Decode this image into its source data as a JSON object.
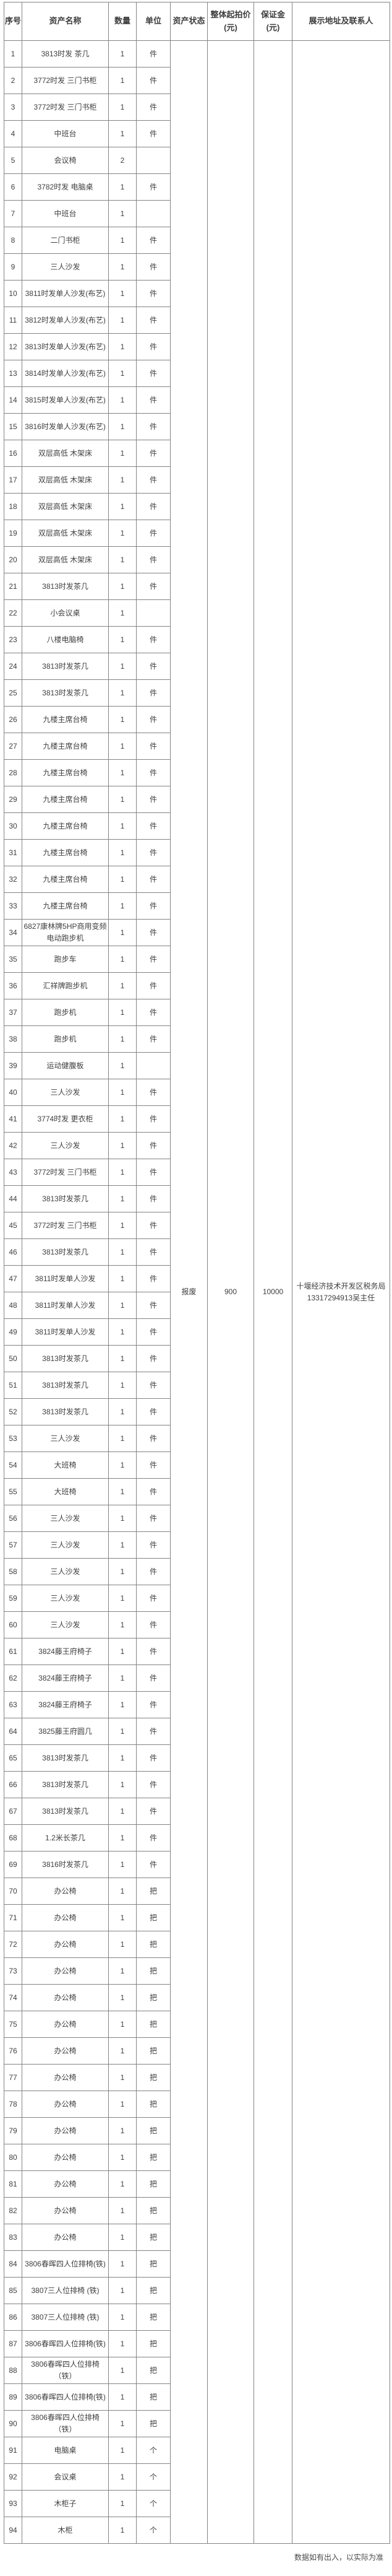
{
  "table": {
    "columns": [
      "序号",
      "资产名称",
      "数量",
      "单位",
      "资产状态",
      "整体起拍价\n(元)",
      "保证金\n(元)",
      "展示地址及联系人"
    ],
    "merged": {
      "asset_status": "报废",
      "starting_price": "900",
      "deposit": "10000",
      "contact": "十堰经济技术开发区税务局\n13317294913吴主任"
    },
    "rows": [
      {
        "no": "1",
        "name": "3813时发 茶几",
        "qty": "1",
        "unit": "件"
      },
      {
        "no": "2",
        "name": "3772时发 三门书柜",
        "qty": "1",
        "unit": "件"
      },
      {
        "no": "3",
        "name": "3772时发 三门书柜",
        "qty": "1",
        "unit": "件"
      },
      {
        "no": "4",
        "name": "中班台",
        "qty": "1",
        "unit": "件"
      },
      {
        "no": "5",
        "name": "会议椅",
        "qty": "2",
        "unit": ""
      },
      {
        "no": "6",
        "name": "3782时发 电脑桌",
        "qty": "1",
        "unit": "件"
      },
      {
        "no": "7",
        "name": "中班台",
        "qty": "1",
        "unit": ""
      },
      {
        "no": "8",
        "name": "二门书柜",
        "qty": "1",
        "unit": "件"
      },
      {
        "no": "9",
        "name": "三人沙发",
        "qty": "1",
        "unit": "件"
      },
      {
        "no": "10",
        "name": "3811时发单人沙发(布艺)",
        "qty": "1",
        "unit": "件"
      },
      {
        "no": "11",
        "name": "3812时发单人沙发(布艺)",
        "qty": "1",
        "unit": "件"
      },
      {
        "no": "12",
        "name": "3813时发单人沙发(布艺)",
        "qty": "1",
        "unit": "件"
      },
      {
        "no": "13",
        "name": "3814时发单人沙发(布艺)",
        "qty": "1",
        "unit": "件"
      },
      {
        "no": "14",
        "name": "3815时发单人沙发(布艺)",
        "qty": "1",
        "unit": "件"
      },
      {
        "no": "15",
        "name": "3816时发单人沙发(布艺)",
        "qty": "1",
        "unit": "件"
      },
      {
        "no": "16",
        "name": "双层高低 木架床",
        "qty": "1",
        "unit": "件"
      },
      {
        "no": "17",
        "name": "双层高低 木架床",
        "qty": "1",
        "unit": "件"
      },
      {
        "no": "18",
        "name": "双层高低 木架床",
        "qty": "1",
        "unit": "件"
      },
      {
        "no": "19",
        "name": "双层高低 木架床",
        "qty": "1",
        "unit": "件"
      },
      {
        "no": "20",
        "name": "双层高低 木架床",
        "qty": "1",
        "unit": "件"
      },
      {
        "no": "21",
        "name": "3813时发茶几",
        "qty": "1",
        "unit": "件"
      },
      {
        "no": "22",
        "name": "小会议桌",
        "qty": "1",
        "unit": ""
      },
      {
        "no": "23",
        "name": "八楼电脑椅",
        "qty": "1",
        "unit": "件"
      },
      {
        "no": "24",
        "name": "3813时发茶几",
        "qty": "1",
        "unit": "件"
      },
      {
        "no": "25",
        "name": "3813时发茶几",
        "qty": "1",
        "unit": "件"
      },
      {
        "no": "26",
        "name": "九楼主席台椅",
        "qty": "1",
        "unit": "件"
      },
      {
        "no": "27",
        "name": "九楼主席台椅",
        "qty": "1",
        "unit": "件"
      },
      {
        "no": "28",
        "name": "九楼主席台椅",
        "qty": "1",
        "unit": "件"
      },
      {
        "no": "29",
        "name": "九楼主席台椅",
        "qty": "1",
        "unit": "件"
      },
      {
        "no": "30",
        "name": "九楼主席台椅",
        "qty": "1",
        "unit": "件"
      },
      {
        "no": "31",
        "name": "九楼主席台椅",
        "qty": "1",
        "unit": "件"
      },
      {
        "no": "32",
        "name": "九楼主席台椅",
        "qty": "1",
        "unit": "件"
      },
      {
        "no": "33",
        "name": "九楼主席台椅",
        "qty": "1",
        "unit": "件"
      },
      {
        "no": "34",
        "name": "6827康林牌5HP商用变频电动跑步机",
        "qty": "1",
        "unit": "件"
      },
      {
        "no": "35",
        "name": "跑步车",
        "qty": "1",
        "unit": "件"
      },
      {
        "no": "36",
        "name": "汇祥牌跑步机",
        "qty": "1",
        "unit": "件"
      },
      {
        "no": "37",
        "name": "跑步机",
        "qty": "1",
        "unit": "件"
      },
      {
        "no": "38",
        "name": "跑步机",
        "qty": "1",
        "unit": "件"
      },
      {
        "no": "39",
        "name": "运动健腹板",
        "qty": "1",
        "unit": ""
      },
      {
        "no": "40",
        "name": "三人沙发",
        "qty": "1",
        "unit": "件"
      },
      {
        "no": "41",
        "name": "3774时发 更衣柜",
        "qty": "1",
        "unit": "件"
      },
      {
        "no": "42",
        "name": "三人沙发",
        "qty": "1",
        "unit": "件"
      },
      {
        "no": "43",
        "name": "3772时发 三门书柜",
        "qty": "1",
        "unit": "件"
      },
      {
        "no": "44",
        "name": "3813时发茶几",
        "qty": "1",
        "unit": "件"
      },
      {
        "no": "45",
        "name": "3772时发 三门书柜",
        "qty": "1",
        "unit": "件"
      },
      {
        "no": "46",
        "name": "3813时发茶几",
        "qty": "1",
        "unit": "件"
      },
      {
        "no": "47",
        "name": "3811时发单人沙发",
        "qty": "1",
        "unit": "件"
      },
      {
        "no": "48",
        "name": "3811时发单人沙发",
        "qty": "1",
        "unit": "件"
      },
      {
        "no": "49",
        "name": "3811时发单人沙发",
        "qty": "1",
        "unit": "件"
      },
      {
        "no": "50",
        "name": "3813时发茶几",
        "qty": "1",
        "unit": "件"
      },
      {
        "no": "51",
        "name": "3813时发茶几",
        "qty": "1",
        "unit": "件"
      },
      {
        "no": "52",
        "name": "3813时发茶几",
        "qty": "1",
        "unit": "件"
      },
      {
        "no": "53",
        "name": "三人沙发",
        "qty": "1",
        "unit": "件"
      },
      {
        "no": "54",
        "name": "大班椅",
        "qty": "1",
        "unit": "件"
      },
      {
        "no": "55",
        "name": "大班椅",
        "qty": "1",
        "unit": "件"
      },
      {
        "no": "56",
        "name": "三人沙发",
        "qty": "1",
        "unit": "件"
      },
      {
        "no": "57",
        "name": "三人沙发",
        "qty": "1",
        "unit": "件"
      },
      {
        "no": "58",
        "name": "三人沙发",
        "qty": "1",
        "unit": "件"
      },
      {
        "no": "59",
        "name": "三人沙发",
        "qty": "1",
        "unit": "件"
      },
      {
        "no": "60",
        "name": "三人沙发",
        "qty": "1",
        "unit": "件"
      },
      {
        "no": "61",
        "name": "3824藤王府椅子",
        "qty": "1",
        "unit": "件"
      },
      {
        "no": "62",
        "name": "3824藤王府椅子",
        "qty": "1",
        "unit": "件"
      },
      {
        "no": "63",
        "name": "3824藤王府椅子",
        "qty": "1",
        "unit": "件"
      },
      {
        "no": "64",
        "name": "3825藤王府圆几",
        "qty": "1",
        "unit": "件"
      },
      {
        "no": "65",
        "name": "3813时发茶几",
        "qty": "1",
        "unit": "件"
      },
      {
        "no": "66",
        "name": "3813时发茶几",
        "qty": "1",
        "unit": "件"
      },
      {
        "no": "67",
        "name": "3813时发茶几",
        "qty": "1",
        "unit": "件"
      },
      {
        "no": "68",
        "name": "1.2米长茶几",
        "qty": "1",
        "unit": "件"
      },
      {
        "no": "69",
        "name": "3816时发茶几",
        "qty": "1",
        "unit": "件"
      },
      {
        "no": "70",
        "name": "办公椅",
        "qty": "1",
        "unit": "把"
      },
      {
        "no": "71",
        "name": "办公椅",
        "qty": "1",
        "unit": "把"
      },
      {
        "no": "72",
        "name": "办公椅",
        "qty": "1",
        "unit": "把"
      },
      {
        "no": "73",
        "name": "办公椅",
        "qty": "1",
        "unit": "把"
      },
      {
        "no": "74",
        "name": "办公椅",
        "qty": "1",
        "unit": "把"
      },
      {
        "no": "75",
        "name": "办公椅",
        "qty": "1",
        "unit": "把"
      },
      {
        "no": "76",
        "name": "办公椅",
        "qty": "1",
        "unit": "把"
      },
      {
        "no": "77",
        "name": "办公椅",
        "qty": "1",
        "unit": "把"
      },
      {
        "no": "78",
        "name": "办公椅",
        "qty": "1",
        "unit": "把"
      },
      {
        "no": "79",
        "name": "办公椅",
        "qty": "1",
        "unit": "把"
      },
      {
        "no": "80",
        "name": "办公椅",
        "qty": "1",
        "unit": "把"
      },
      {
        "no": "81",
        "name": "办公椅",
        "qty": "1",
        "unit": "把"
      },
      {
        "no": "82",
        "name": "办公椅",
        "qty": "1",
        "unit": "把"
      },
      {
        "no": "83",
        "name": "办公椅",
        "qty": "1",
        "unit": "把"
      },
      {
        "no": "84",
        "name": "3806春晖四人位排椅(铁)",
        "qty": "1",
        "unit": "把"
      },
      {
        "no": "85",
        "name": "3807三人位排椅 (铁)",
        "qty": "1",
        "unit": "把"
      },
      {
        "no": "86",
        "name": "3807三人位排椅 (铁)",
        "qty": "1",
        "unit": "把"
      },
      {
        "no": "87",
        "name": "3806春晖四人位排椅(铁)",
        "qty": "1",
        "unit": "把"
      },
      {
        "no": "88",
        "name": "3806春晖四人位排椅（铁）",
        "qty": "1",
        "unit": "把"
      },
      {
        "no": "89",
        "name": "3806春晖四人位排椅(铁)",
        "qty": "1",
        "unit": "把"
      },
      {
        "no": "90",
        "name": "3806春晖四人位排椅（铁）",
        "qty": "1",
        "unit": "把"
      },
      {
        "no": "91",
        "name": "电脑桌",
        "qty": "1",
        "unit": "个"
      },
      {
        "no": "92",
        "name": "会议桌",
        "qty": "1",
        "unit": "个"
      },
      {
        "no": "93",
        "name": "木柜子",
        "qty": "1",
        "unit": "个"
      },
      {
        "no": "94",
        "name": "木柜",
        "qty": "1",
        "unit": "个"
      }
    ]
  },
  "footer": {
    "note": "数据如有出入，以实际为准"
  }
}
